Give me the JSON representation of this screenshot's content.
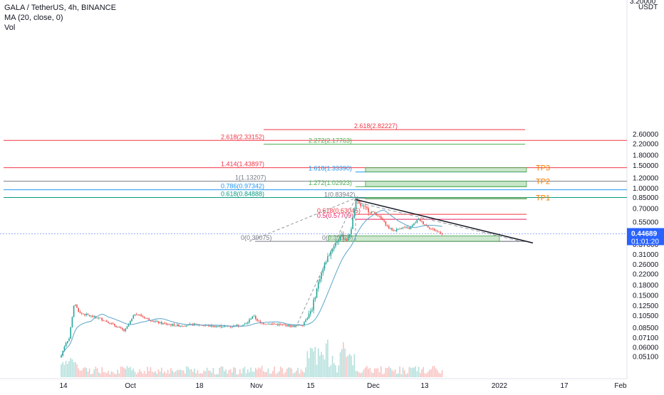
{
  "legend": {
    "symbol_line": "GALA / TetherUS, 4h, BINANCE",
    "ma_line": "MA (20, close, 0)",
    "vol_line": "Vol"
  },
  "currency": "USDT",
  "top_label_cut": "3.20000",
  "last_price": {
    "value": "0.44689",
    "countdown": "01:01:20",
    "color": "#2962ff"
  },
  "colors": {
    "candle_up": "#26a69a",
    "candle_down": "#ef5350",
    "ma": "#5aa5c9",
    "fib_red": "#f23645",
    "fib_green": "#4caf50",
    "fib_blue": "#2196f3",
    "fib_gray": "#787b86",
    "fib_teal": "#089981",
    "fib_pink": "#e91e63",
    "tp_label": "#f57c00",
    "zone_fill": "#a5d6a7",
    "zone_stroke": "#43a047",
    "trendline": "#131722"
  },
  "chart_data": {
    "type": "candlestick",
    "title": "GALA / TetherUS, 4h, BINANCE",
    "y_scale": "log",
    "y_ticks": [
      "2.60000",
      "2.20000",
      "1.80000",
      "1.50000",
      "1.20000",
      "1.00000",
      "0.85000",
      "0.70000",
      "0.55000",
      "0.45000",
      "0.37000",
      "0.31000",
      "0.26000",
      "0.22000",
      "0.18000",
      "0.15000",
      "0.12500",
      "0.10500",
      "0.08500",
      "0.07100",
      "0.06000",
      "0.05100"
    ],
    "x_ticks": [
      "14",
      "Oct",
      "18",
      "Nov",
      "15",
      "Dec",
      "13",
      "2022",
      "17",
      "Feb"
    ],
    "indicators": [
      "MA (20, close, 0)",
      "Vol"
    ],
    "fib_levels": [
      {
        "label": "2.618(2.82227)",
        "value": 2.82227,
        "color_key": "fib_red"
      },
      {
        "label": "2.618(2.33152)",
        "value": 2.33152,
        "color_key": "fib_red"
      },
      {
        "label": "2.272(2.17763)",
        "value": 2.17763,
        "color_key": "fib_green"
      },
      {
        "label": "1.414(1.43897)",
        "value": 1.43897,
        "color_key": "fib_red"
      },
      {
        "label": "1.618(1.33390)",
        "value": 1.3339,
        "color_key": "fib_blue"
      },
      {
        "label": "1(1.13207)",
        "value": 1.13207,
        "color_key": "fib_gray"
      },
      {
        "label": "1.272(1.02923)",
        "value": 1.02923,
        "color_key": "fib_green"
      },
      {
        "label": "0.786(0.97342)",
        "value": 0.97342,
        "color_key": "fib_blue"
      },
      {
        "label": "0.618(0.84888)",
        "value": 0.84888,
        "color_key": "fib_teal"
      },
      {
        "label": "1(0.83942)",
        "value": 0.83942,
        "color_key": "fib_gray"
      },
      {
        "label": "0.618(0.63045)",
        "value": 0.63045,
        "color_key": "fib_red"
      },
      {
        "label": "0.5(0.57709)",
        "value": 0.57709,
        "color_key": "fib_pink"
      },
      {
        "label": "0(0.39075)",
        "value": 0.39075,
        "color_key": "fib_gray"
      },
      {
        "label": "0(0.39075)",
        "value": 0.39075,
        "color_key": "fib_gray"
      }
    ],
    "targets": [
      {
        "label": "TP3",
        "value": 1.43897
      },
      {
        "label": "TP2",
        "value": 1.13207
      },
      {
        "label": "TP1",
        "value": 0.84888
      }
    ],
    "current_price": 0.44689
  }
}
